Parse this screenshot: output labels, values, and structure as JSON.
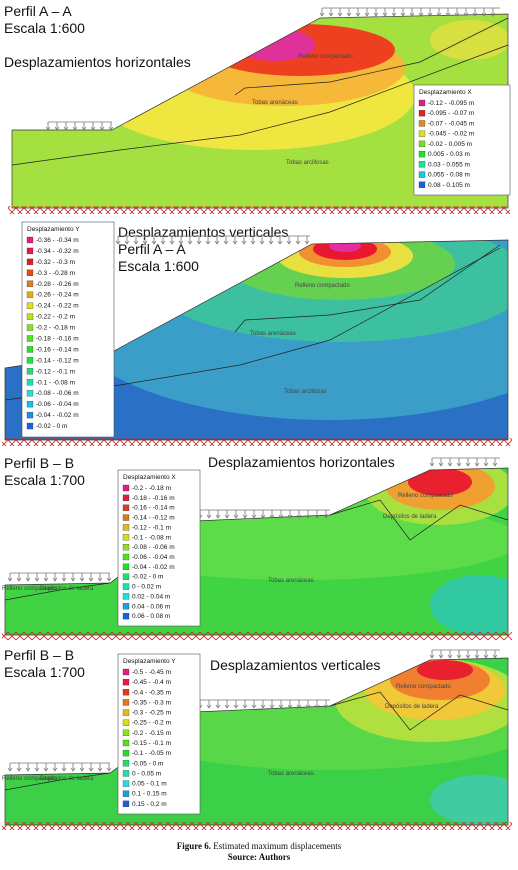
{
  "panels": [
    {
      "title_lines": [
        "Perfil A – A",
        "Escala 1:600"
      ],
      "subtitle": "Desplazamientos horizontales",
      "legend": {
        "title": "Desplazamiento X",
        "entries": [
          "-0.12 - -0.095 m",
          "-0.095 - -0.07 m",
          "-0.07 - -0.045 m",
          "-0.045 - -0.02 m",
          "-0.02 - 0.005 m",
          "0.005 - 0.03 m",
          "0.03 - 0.055 m",
          "0.055 - 0.08 m",
          "0.08 - 0.105 m"
        ]
      },
      "layers": [
        "Relleno compactado",
        "Tobas arenáceas",
        "Tobas arcillosas"
      ]
    },
    {
      "title_lines": [
        "Desplazamientos verticales",
        "Perfil A – A",
        "Escala 1:600"
      ],
      "legend": {
        "title": "Desplazamiento Y",
        "entries": [
          "-0.36 - -0.34 m",
          "-0.34 - -0.32 m",
          "-0.32 - -0.3 m",
          "-0.3 - -0.28 m",
          "-0.28 - -0.26 m",
          "-0.26 - -0.24 m",
          "-0.24 - -0.22 m",
          "-0.22 - -0.2 m",
          "-0.2 - -0.18 m",
          "-0.18 - -0.16 m",
          "-0.16 - -0.14 m",
          "-0.14 - -0.12 m",
          "-0.12 - -0.1 m",
          "-0.1 - -0.08 m",
          "-0.08 - -0.06 m",
          "-0.06 - -0.04 m",
          "-0.04 - -0.02 m",
          "-0.02 - 0 m"
        ]
      },
      "layers": [
        "Relleno compactado",
        "Tobas arenáceas",
        "Tobas arcillosas"
      ]
    },
    {
      "title_lines": [
        "Perfil B – B",
        "Escala 1:700"
      ],
      "subtitle": "Desplazamientos horizontales",
      "legend": {
        "title": "Desplazamiento X",
        "entries": [
          "-0.2 - -0.18 m",
          "-0.18 - -0.16 m",
          "-0.16 - -0.14 m",
          "-0.14 - -0.12 m",
          "-0.12 - -0.1 m",
          "-0.1 - -0.08 m",
          "-0.08 - -0.06 m",
          "-0.06 - -0.04 m",
          "-0.04 - -0.02 m",
          "-0.02 - 0 m",
          "0 - 0.02 m",
          "0.02 - 0.04 m",
          "0.04 - 0.06 m",
          "0.06 - 0.08 m"
        ]
      },
      "layers": [
        "Relleno compactado",
        "Depósitos de ladera",
        "Relleno compactado",
        "Depósitos de ladera",
        "Tobas arenáceas"
      ]
    },
    {
      "title_lines": [
        "Perfil B – B",
        "Escala 1:700"
      ],
      "subtitle": "Desplazamientos verticales",
      "legend": {
        "title": "Desplazamiento Y",
        "entries": [
          "-0.5 - -0.45 m",
          "-0.45 - -0.4 m",
          "-0.4 - -0.35 m",
          "-0.35 - -0.3 m",
          "-0.3 - -0.25 m",
          "-0.25 - -0.2 m",
          "-0.2 - -0.15 m",
          "-0.15 - -0.1 m",
          "-0.1 - -0.05 m",
          "-0.05 - 0 m",
          "0 - 0.05 m",
          "0.05 - 0.1 m",
          "0.1 - 0.15 m",
          "0.15 - 0.2 m"
        ]
      },
      "layers": [
        "Relleno compactado",
        "Depósitos de ladera",
        "Relleno compactado",
        "Depósitos de ladera",
        "Tobas arenáceas"
      ]
    }
  ],
  "caption": {
    "label": "Figure 6.",
    "text": "Estimated maximum displacements",
    "source": "Source: Authors"
  }
}
